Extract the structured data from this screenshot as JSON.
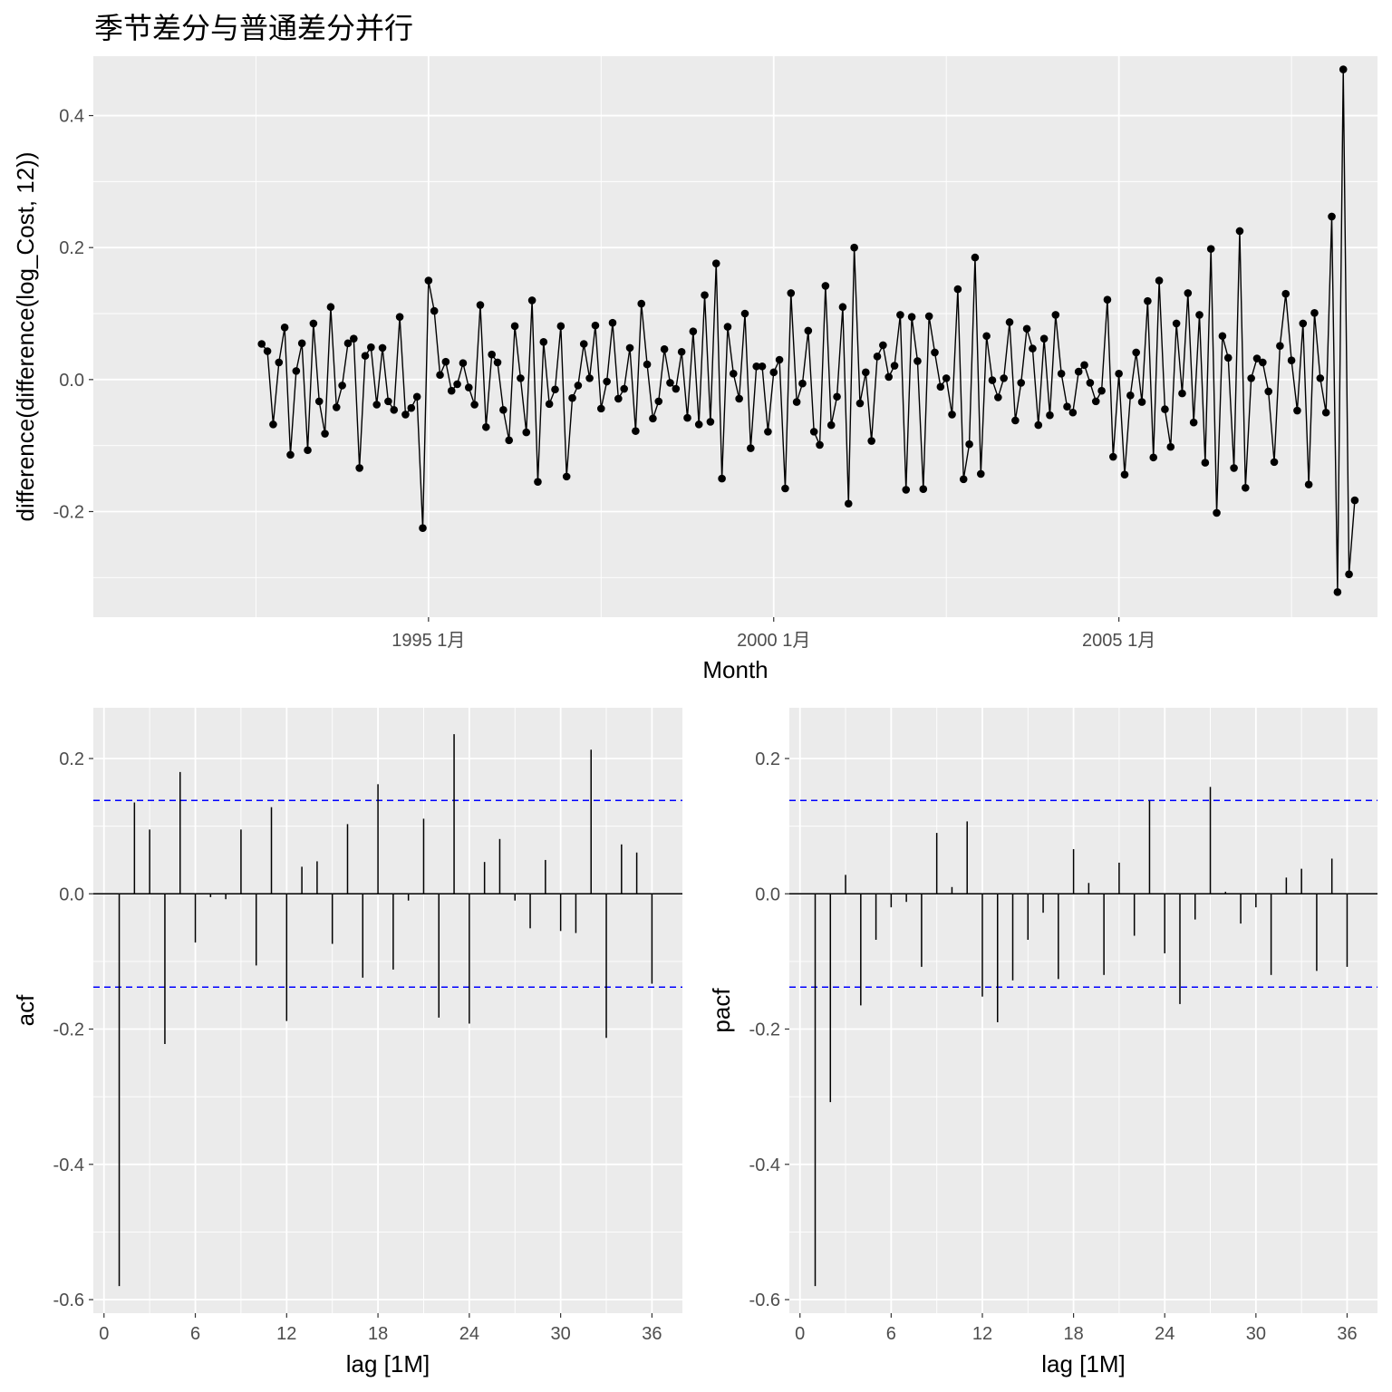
{
  "title": "季节差分与普通差分并行",
  "chart_data": [
    {
      "type": "line",
      "title": "季节差分与普通差分并行",
      "xlabel": "Month",
      "ylabel": "difference(difference(log_Cost, 12))",
      "x_start": "1992 8月",
      "x_ticks": [
        "1995 1月",
        "2000 1月",
        "2005 1月"
      ],
      "y_ticks": [
        "-0.2",
        "0.0",
        "0.2",
        "0.4"
      ],
      "ylim": [
        -0.36,
        0.49
      ],
      "series": [
        {
          "values": [
            0.054,
            0.043,
            -0.068,
            0.026,
            0.079,
            -0.114,
            0.013,
            0.055,
            -0.107,
            0.085,
            -0.033,
            -0.082,
            0.11,
            -0.042,
            -0.009,
            0.055,
            0.062,
            -0.134,
            0.036,
            0.049,
            -0.038,
            0.048,
            -0.033,
            -0.046,
            0.095,
            -0.053,
            -0.043,
            -0.026,
            -0.225,
            0.15,
            0.104,
            0.007,
            0.027,
            -0.017,
            -0.007,
            0.025,
            -0.012,
            -0.038,
            0.113,
            -0.072,
            0.038,
            0.026,
            -0.046,
            -0.092,
            0.081,
            0.002,
            -0.08,
            0.12,
            -0.155,
            0.057,
            -0.037,
            -0.015,
            0.081,
            -0.147,
            -0.028,
            -0.009,
            0.054,
            0.002,
            0.082,
            -0.044,
            -0.003,
            0.086,
            -0.029,
            -0.014,
            0.048,
            -0.078,
            0.115,
            0.023,
            -0.059,
            -0.033,
            0.046,
            -0.005,
            -0.014,
            0.042,
            -0.058,
            0.073,
            -0.068,
            0.128,
            -0.064,
            0.176,
            -0.15,
            0.08,
            0.009,
            -0.029,
            0.1,
            -0.104,
            0.02,
            0.02,
            -0.079,
            0.011,
            0.03,
            -0.165,
            0.131,
            -0.034,
            -0.006,
            0.074,
            -0.079,
            -0.099,
            0.142,
            -0.069,
            -0.026,
            0.11,
            -0.188,
            0.2,
            -0.036,
            0.011,
            -0.093,
            0.035,
            0.052,
            0.004,
            0.021,
            0.098,
            -0.167,
            0.095,
            0.028,
            -0.166,
            0.096,
            0.041,
            -0.011,
            0.002,
            -0.053,
            0.137,
            -0.151,
            -0.098,
            0.185,
            -0.143,
            0.066,
            -0.001,
            -0.027,
            0.002,
            0.087,
            -0.062,
            -0.005,
            0.077,
            0.047,
            -0.069,
            0.062,
            -0.054,
            0.098,
            0.009,
            -0.041,
            -0.05,
            0.012,
            0.022,
            -0.005,
            -0.033,
            -0.017,
            0.121,
            -0.117,
            0.009,
            -0.144,
            -0.024,
            0.041,
            -0.034,
            0.119,
            -0.118,
            0.15,
            -0.045,
            -0.102,
            0.085,
            -0.021,
            0.131,
            -0.065,
            0.098,
            -0.126,
            0.198,
            -0.202,
            0.066,
            0.033,
            -0.134,
            0.225,
            -0.164,
            0.002,
            0.032,
            0.026,
            -0.018,
            -0.125,
            0.051,
            0.13,
            0.029,
            -0.047,
            0.085,
            -0.159,
            0.101,
            0.002,
            -0.05,
            0.247,
            -0.322,
            0.47,
            -0.295,
            -0.183
          ]
        }
      ]
    },
    {
      "type": "bar",
      "xlabel": "lag [1M]",
      "ylabel": "acf",
      "x_ticks": [
        "0",
        "6",
        "12",
        "18",
        "24",
        "30",
        "36"
      ],
      "y_ticks": [
        "-0.6",
        "-0.4",
        "-0.2",
        "0.0",
        "0.2"
      ],
      "ylim": [
        -0.62,
        0.275
      ],
      "xlim": [
        -0.7,
        38
      ],
      "confidence_bound": 0.138,
      "lags": [
        1,
        2,
        3,
        4,
        5,
        6,
        7,
        8,
        9,
        10,
        11,
        12,
        13,
        14,
        15,
        16,
        17,
        18,
        19,
        20,
        21,
        22,
        23,
        24,
        25,
        26,
        27,
        28,
        29,
        30,
        31,
        32,
        33,
        34,
        35,
        36
      ],
      "values": [
        -0.58,
        0.135,
        0.095,
        -0.222,
        0.18,
        -0.072,
        -0.005,
        -0.008,
        0.095,
        -0.106,
        0.128,
        -0.188,
        0.04,
        0.048,
        -0.074,
        0.103,
        -0.124,
        0.162,
        -0.112,
        -0.01,
        0.111,
        -0.183,
        0.236,
        -0.192,
        0.047,
        0.081,
        -0.01,
        -0.051,
        0.05,
        -0.055,
        -0.058,
        0.213,
        -0.213,
        0.073,
        0.061,
        -0.133
      ]
    },
    {
      "type": "bar",
      "xlabel": "lag [1M]",
      "ylabel": "pacf",
      "x_ticks": [
        "0",
        "6",
        "12",
        "18",
        "24",
        "30",
        "36"
      ],
      "y_ticks": [
        "-0.6",
        "-0.4",
        "-0.2",
        "0.0",
        "0.2"
      ],
      "ylim": [
        -0.62,
        0.275
      ],
      "xlim": [
        -0.7,
        38
      ],
      "confidence_bound": 0.138,
      "lags": [
        1,
        2,
        3,
        4,
        5,
        6,
        7,
        8,
        9,
        10,
        11,
        12,
        13,
        14,
        15,
        16,
        17,
        18,
        19,
        20,
        21,
        22,
        23,
        24,
        25,
        26,
        27,
        28,
        29,
        30,
        31,
        32,
        33,
        34,
        35,
        36
      ],
      "values": [
        -0.58,
        -0.308,
        0.028,
        -0.165,
        -0.068,
        -0.02,
        -0.012,
        -0.108,
        0.09,
        0.01,
        0.107,
        -0.152,
        -0.19,
        -0.128,
        -0.068,
        -0.028,
        -0.126,
        0.066,
        0.016,
        -0.12,
        0.046,
        -0.062,
        0.138,
        -0.088,
        -0.163,
        -0.038,
        0.158,
        0.003,
        -0.044,
        -0.02,
        -0.12,
        0.024,
        0.037,
        -0.114,
        0.052,
        -0.108
      ]
    }
  ]
}
